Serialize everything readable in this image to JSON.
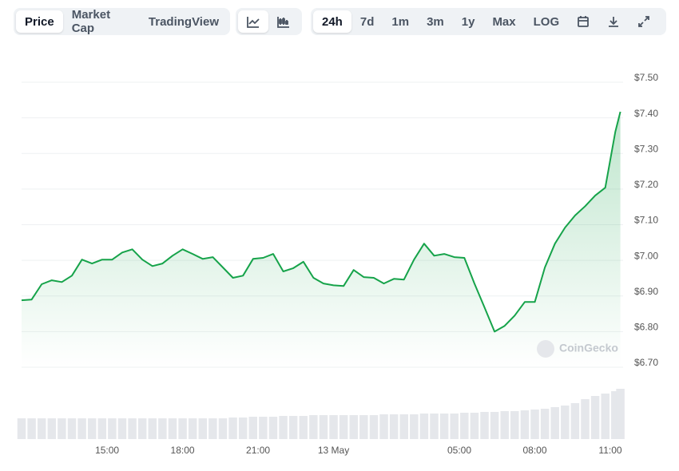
{
  "toolbar": {
    "tabs": [
      "Price",
      "Market Cap",
      "TradingView"
    ],
    "ranges": [
      "24h",
      "7d",
      "1m",
      "3m",
      "1y",
      "Max",
      "LOG"
    ]
  },
  "chart_data": {
    "type": "line",
    "watermark": "CoinGecko",
    "x": [
      11.6,
      12.0,
      12.4,
      12.8,
      13.2,
      13.6,
      14.0,
      14.4,
      14.8,
      15.2,
      15.6,
      16.0,
      16.4,
      16.8,
      17.2,
      17.6,
      18.0,
      18.4,
      18.8,
      19.2,
      19.6,
      20.0,
      20.4,
      20.8,
      21.2,
      21.6,
      22.0,
      22.4,
      22.8,
      23.2,
      23.6,
      24.0,
      24.4,
      24.8,
      25.2,
      25.6,
      26.0,
      26.4,
      26.8,
      27.2,
      27.6,
      28.0,
      28.4,
      28.8,
      29.2,
      29.6,
      30.0,
      30.4,
      30.8,
      31.2,
      31.6,
      32.0,
      32.4,
      32.8,
      33.2,
      33.6,
      34.0,
      34.4,
      34.8,
      35.2,
      35.4
    ],
    "series": [
      {
        "name": "Price",
        "color": "#16a34a",
        "values": [
          6.888,
          6.89,
          6.933,
          6.944,
          6.939,
          6.957,
          7.002,
          6.991,
          7.002,
          7.002,
          7.022,
          7.031,
          7.002,
          6.984,
          6.991,
          7.013,
          7.031,
          7.018,
          7.004,
          7.009,
          6.98,
          6.951,
          6.957,
          7.004,
          7.007,
          7.018,
          6.969,
          6.978,
          6.996,
          6.951,
          6.935,
          6.93,
          6.928,
          6.973,
          6.953,
          6.951,
          6.935,
          6.948,
          6.946,
          7.002,
          7.047,
          7.013,
          7.018,
          7.009,
          7.007,
          6.935,
          6.868,
          6.8,
          6.816,
          6.845,
          6.883,
          6.883,
          6.98,
          7.047,
          7.092,
          7.126,
          7.152,
          7.182,
          7.204,
          7.361,
          7.417
        ]
      },
      {
        "name": "Volume",
        "color": "#e5e7eb",
        "axis": "y2",
        "type": "bar",
        "values": [
          26,
          26,
          26,
          26,
          26,
          26,
          26,
          26,
          26,
          26,
          26,
          26,
          26,
          26,
          26,
          26,
          26,
          26,
          26,
          26,
          26,
          27,
          27,
          28,
          28,
          28,
          29,
          29,
          29,
          30,
          30,
          30,
          30,
          30,
          30,
          30,
          31,
          31,
          31,
          31,
          32,
          32,
          32,
          32,
          33,
          33,
          34,
          34,
          35,
          35,
          36,
          37,
          38,
          40,
          42,
          45,
          50,
          54,
          57,
          60,
          63
        ]
      }
    ],
    "xlim": [
      11.6,
      35.4
    ],
    "xticks": [
      {
        "value": 15,
        "label": "15:00"
      },
      {
        "value": 18,
        "label": "18:00"
      },
      {
        "value": 21,
        "label": "21:00"
      },
      {
        "value": 24,
        "label": "13 May"
      },
      {
        "value": 29,
        "label": "05:00"
      },
      {
        "value": 32,
        "label": "08:00"
      },
      {
        "value": 35,
        "label": "11:00"
      }
    ],
    "ylim": [
      6.7,
      7.5
    ],
    "yticks": [
      {
        "value": 6.7,
        "label": "$6.70"
      },
      {
        "value": 6.8,
        "label": "$6.80"
      },
      {
        "value": 6.9,
        "label": "$6.90"
      },
      {
        "value": 7.0,
        "label": "$7.00"
      },
      {
        "value": 7.1,
        "label": "$7.10"
      },
      {
        "value": 7.2,
        "label": "$7.20"
      },
      {
        "value": 7.3,
        "label": "$7.30"
      },
      {
        "value": 7.4,
        "label": "$7.40"
      },
      {
        "value": 7.5,
        "label": "$7.50"
      }
    ],
    "y2lim": [
      0,
      65
    ],
    "grid": true
  }
}
